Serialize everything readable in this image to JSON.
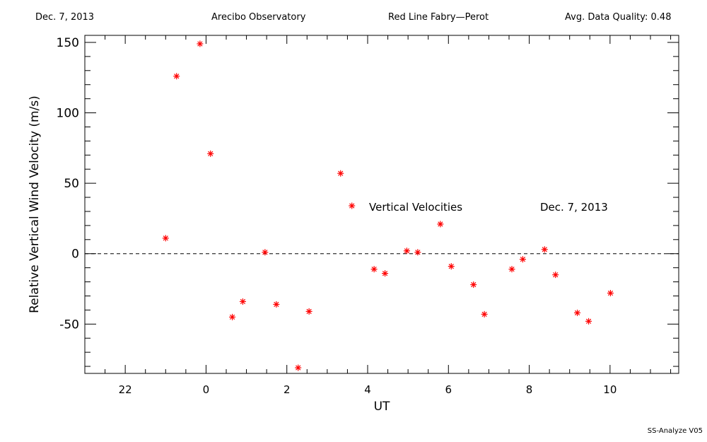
{
  "header": {
    "date": "Dec. 7, 2013",
    "observatory": "Arecibo Observatory",
    "instrument": "Red Line Fabry—Perot",
    "quality": "Avg. Data Quality: 0.48"
  },
  "footer": {
    "version": "SS-Analyze V05"
  },
  "chart_data": {
    "type": "scatter",
    "xlabel": "UT",
    "ylabel": "Relative Vertical Wind Velocity (m/s)",
    "xlim": [
      21.0,
      11.7
    ],
    "ylim": [
      -85,
      155
    ],
    "x_ticks": [
      22,
      0,
      2,
      4,
      6,
      8,
      10
    ],
    "y_ticks": [
      150,
      100,
      50,
      0,
      -50
    ],
    "marker": "asterisk",
    "marker_color": "#ff0000",
    "zero_line": "dashed",
    "annotations": [
      "Vertical Velocities",
      "Dec. 7, 2013"
    ],
    "series": [
      {
        "x": [
          -1.0,
          -0.73,
          -0.15,
          0.11,
          0.65,
          0.91,
          1.46,
          1.74,
          2.28,
          2.55,
          3.33,
          3.61,
          4.16,
          4.43,
          4.97,
          5.24,
          5.8,
          6.07,
          6.62,
          6.89,
          7.57,
          7.84,
          8.38,
          8.65,
          9.19,
          9.47,
          10.01
        ],
        "y": [
          11,
          126,
          149,
          71,
          -45,
          -34,
          1,
          -36,
          -81,
          -41,
          57,
          34,
          -11,
          -14,
          2,
          1,
          21,
          -9,
          -22,
          -43,
          -11,
          -4,
          3,
          -15,
          -42,
          -48,
          -28
        ]
      }
    ]
  }
}
